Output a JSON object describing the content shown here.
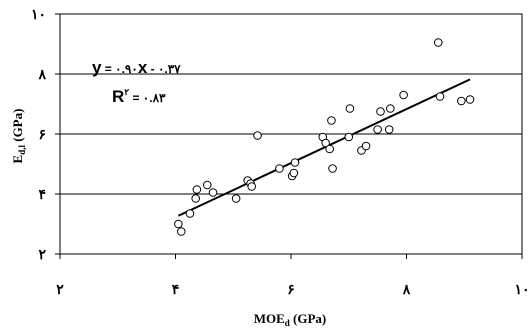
{
  "chart_data": {
    "type": "scatter",
    "title": "",
    "xlabel": "MOE",
    "xlabel_sub": "d",
    "xlabel_unit": " (GPa)",
    "ylabel": "E",
    "ylabel_sub": "d,l",
    "ylabel_unit": " (GPa)",
    "xlim": [
      2,
      10
    ],
    "ylim": [
      2,
      10
    ],
    "x_ticks": [
      2,
      4,
      6,
      8,
      10
    ],
    "y_ticks": [
      2,
      4,
      6,
      8,
      10
    ],
    "x_tick_labels": [
      "٢",
      "۴",
      "۶",
      "٨",
      "١٠"
    ],
    "y_tick_labels": [
      "٢",
      "۴",
      "۶",
      "٨",
      "١٠"
    ],
    "grid": "horizontal",
    "marker": "open-circle",
    "colors": {
      "axis": "#000000",
      "marker": "#000000",
      "trendline": "#000000"
    },
    "points": [
      [
        4.05,
        3.0
      ],
      [
        4.1,
        2.75
      ],
      [
        4.25,
        3.35
      ],
      [
        4.35,
        3.85
      ],
      [
        4.37,
        4.15
      ],
      [
        4.55,
        4.3
      ],
      [
        4.65,
        4.05
      ],
      [
        5.05,
        3.85
      ],
      [
        5.25,
        4.45
      ],
      [
        5.3,
        4.35
      ],
      [
        5.32,
        4.25
      ],
      [
        5.42,
        5.95
      ],
      [
        5.8,
        4.85
      ],
      [
        6.02,
        4.6
      ],
      [
        6.05,
        4.7
      ],
      [
        6.07,
        5.05
      ],
      [
        6.55,
        5.9
      ],
      [
        6.6,
        5.7
      ],
      [
        6.67,
        5.5
      ],
      [
        6.7,
        6.45
      ],
      [
        6.72,
        4.85
      ],
      [
        7.0,
        5.9
      ],
      [
        7.02,
        6.85
      ],
      [
        7.22,
        5.45
      ],
      [
        7.3,
        5.6
      ],
      [
        7.5,
        6.15
      ],
      [
        7.55,
        6.75
      ],
      [
        7.7,
        6.15
      ],
      [
        7.72,
        6.85
      ],
      [
        7.95,
        7.3
      ],
      [
        8.55,
        9.05
      ],
      [
        8.58,
        7.25
      ],
      [
        8.95,
        7.1
      ],
      [
        9.1,
        7.15
      ]
    ],
    "trendline": {
      "slope": 0.9,
      "intercept": -0.37,
      "x_start": 4.05,
      "x_end": 9.1
    },
    "annotations": {
      "equation_y": "y",
      "equation_eq1": " = ۰.۹۰",
      "equation_x": "x",
      "equation_eq2": " - ۰.۳۷",
      "r2_R": "R",
      "r2_sup": "٢",
      "r2_value": " = ۰.٨٣"
    }
  }
}
